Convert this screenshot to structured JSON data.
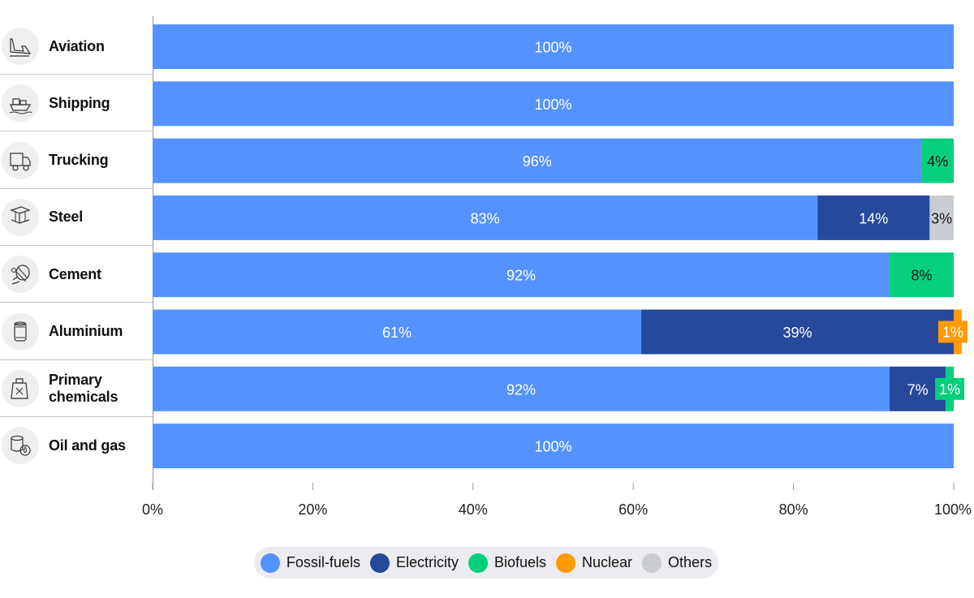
{
  "chart_data": {
    "type": "bar",
    "orientation": "horizontal",
    "stacked": true,
    "categories": [
      "Aviation",
      "Shipping",
      "Trucking",
      "Steel",
      "Cement",
      "Aluminium",
      "Primary chemicals",
      "Oil and gas"
    ],
    "series": [
      {
        "name": "Fossil-fuels",
        "color": "#5493ff",
        "values": [
          100,
          100,
          96,
          83,
          92,
          61,
          92,
          100
        ],
        "labels": [
          "100%",
          "100%",
          "96%",
          "83%",
          "92%",
          "61%",
          "92%",
          "100%"
        ]
      },
      {
        "name": "Electricity",
        "color": "#26499b",
        "values": [
          0,
          0,
          0,
          14,
          0,
          39,
          7,
          0
        ],
        "labels": [
          "",
          "",
          "",
          "14%",
          "",
          "39%",
          "7%",
          ""
        ]
      },
      {
        "name": "Biofuels",
        "color": "#05cf7c",
        "values": [
          0,
          0,
          4,
          0,
          8,
          0,
          1,
          0
        ],
        "labels": [
          "",
          "",
          "4%",
          "",
          "8%",
          "",
          "1%",
          ""
        ]
      },
      {
        "name": "Nuclear",
        "color": "#ff9a00",
        "values": [
          0,
          0,
          0,
          0,
          0,
          1,
          0,
          0
        ],
        "labels": [
          "",
          "",
          "",
          "",
          "",
          "1%",
          "",
          ""
        ]
      },
      {
        "name": "Others",
        "color": "#c9ccd1",
        "values": [
          0,
          0,
          0,
          3,
          0,
          0,
          0,
          0
        ],
        "labels": [
          "",
          "",
          "",
          "3%",
          "",
          "",
          "",
          ""
        ]
      }
    ],
    "xlim": [
      0,
      100
    ],
    "xticks": [
      "0%",
      "20%",
      "40%",
      "60%",
      "80%",
      "100%"
    ],
    "grid": false,
    "legend_position": "bottom"
  },
  "row_icons": [
    "airplane-icon",
    "ship-icon",
    "truck-icon",
    "steel-beam-icon",
    "cement-mixer-icon",
    "can-icon",
    "chemical-canister-icon",
    "oil-barrel-icon"
  ]
}
